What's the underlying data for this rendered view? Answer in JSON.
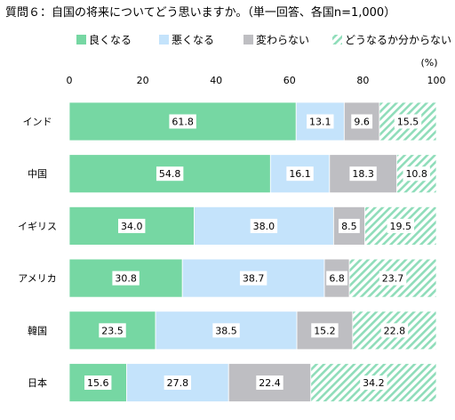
{
  "title": "質問６：自国の将来についてどう思いますか。（単一回答、各国n=1,000）",
  "unit": "(%)",
  "chart_data": {
    "type": "bar",
    "orientation": "horizontal",
    "stacked": true,
    "title": "質問６：自国の将来についてどう思いますか。（単一回答、各国n=1,000）",
    "unit": "(%)",
    "xlim": [
      0,
      100
    ],
    "xticks": [
      "0",
      "20",
      "40",
      "60",
      "80",
      "100"
    ],
    "grid": false,
    "legend_position": "top",
    "categories": [
      "インド",
      "中国",
      "イギリス",
      "アメリカ",
      "韓国",
      "日本"
    ],
    "series": [
      {
        "name": "良くなる",
        "color": "#76D7A3",
        "pattern": "solid",
        "values": [
          61.8,
          54.8,
          34.0,
          30.8,
          23.5,
          15.6
        ]
      },
      {
        "name": "悪くなる",
        "color": "#C4E3FB",
        "pattern": "solid",
        "values": [
          13.1,
          16.1,
          38.0,
          38.7,
          38.5,
          27.8
        ]
      },
      {
        "name": "変わらない",
        "color": "#BEBEC2",
        "pattern": "solid",
        "values": [
          9.6,
          18.3,
          8.5,
          6.8,
          15.2,
          22.4
        ]
      },
      {
        "name": "どうなるか分からない",
        "color": "#8FDDBA",
        "pattern": "diagonal-hatch",
        "values": [
          15.5,
          10.8,
          19.5,
          23.7,
          22.8,
          34.2
        ]
      }
    ],
    "data_labels": [
      [
        "61.8",
        "13.1",
        "9.6",
        "15.5"
      ],
      [
        "54.8",
        "16.1",
        "18.3",
        "10.8"
      ],
      [
        "34.0",
        "38.0",
        "8.5",
        "19.5"
      ],
      [
        "30.8",
        "38.7",
        "6.8",
        "23.7"
      ],
      [
        "23.5",
        "38.5",
        "15.2",
        "22.8"
      ],
      [
        "15.6",
        "27.8",
        "22.4",
        "34.2"
      ]
    ]
  }
}
